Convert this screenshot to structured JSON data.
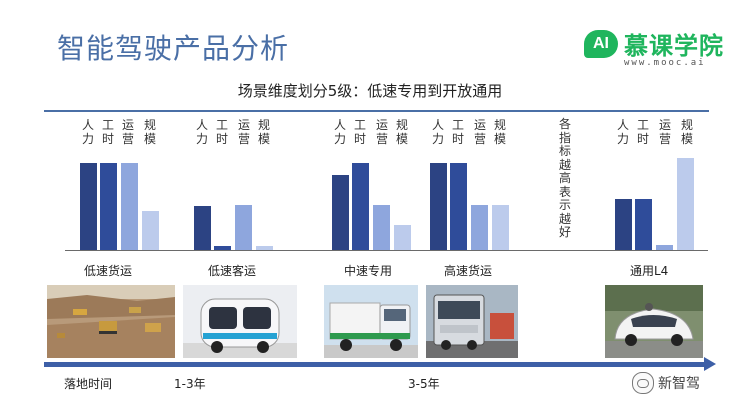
{
  "title": "智能驾驶产品分析",
  "logo": {
    "badge": "AI",
    "name": "慕课学院",
    "url": "www.mooc.ai"
  },
  "subtitle": "场景维度划分5级：低速专用到开放通用",
  "metrics": [
    "人力",
    "工时",
    "运营",
    "规模"
  ],
  "metric_colors": [
    "#2c4383",
    "#2f4c9a",
    "#8ea6dd",
    "#bccbec"
  ],
  "tall_note": "各指标越高表示越好",
  "chart_data": {
    "type": "bar",
    "categories": [
      "低速货运",
      "低速客运",
      "中速专用",
      "高速货运",
      "通用L4"
    ],
    "series": [
      {
        "name": "人力",
        "values": [
          87,
          44,
          75,
          87,
          51
        ]
      },
      {
        "name": "工时",
        "values": [
          87,
          4,
          87,
          87,
          51
        ]
      },
      {
        "name": "运营",
        "values": [
          87,
          45,
          45,
          45,
          5
        ]
      },
      {
        "name": "规模",
        "values": [
          39,
          4,
          25,
          45,
          92
        ]
      }
    ],
    "ylim": [
      0,
      100
    ]
  },
  "timeline": {
    "label": "落地时间",
    "marks": [
      "1-3年",
      "3-5年"
    ]
  },
  "watermark": "新智驾",
  "photos": [
    "mining-trucks-photo",
    "low-speed-shuttle-photo",
    "sanitation-truck-photo",
    "semi-truck-photo",
    "self-driving-car-photo"
  ]
}
